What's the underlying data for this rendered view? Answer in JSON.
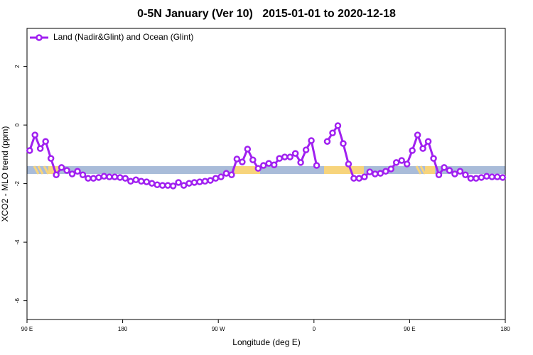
{
  "chart_data": {
    "type": "line",
    "title": "0-5N January (Ver 10)   2015-01-01 to 2020-12-18",
    "xlabel": "Longitude (deg E)",
    "ylabel": "XCO2 - MLO trend (ppm)",
    "xlim": [
      90,
      540
    ],
    "xticks": [
      {
        "value": 90,
        "label": "90 E"
      },
      180,
      {
        "value": 270,
        "label": "90 W"
      },
      {
        "value": 360,
        "label": "0"
      },
      {
        "value": 450,
        "label": "90 E"
      },
      {
        "value": 540,
        "label": "180"
      }
    ],
    "ylim": [
      -6.64,
      3.3
    ],
    "yticks": [
      2,
      0,
      -2,
      -4,
      -6
    ],
    "legend": "top-left",
    "x": [
      92.5,
      97.5,
      102.5,
      107.5,
      112.5,
      117.5,
      122.5,
      127.5,
      132.5,
      137.5,
      142.5,
      147.5,
      152.5,
      157.5,
      162.5,
      167.5,
      172.5,
      177.5,
      182.5,
      187.5,
      192.5,
      197.5,
      202.5,
      207.5,
      212.5,
      217.5,
      222.5,
      227.5,
      232.5,
      237.5,
      242.5,
      247.5,
      252.5,
      257.5,
      262.5,
      267.5,
      272.5,
      277.5,
      282.5,
      287.5,
      292.5,
      297.5,
      302.5,
      307.5,
      312.5,
      317.5,
      322.5,
      327.5,
      332.5,
      337.5,
      342.5,
      347.5,
      352.5,
      357.5,
      362.5,
      367.5,
      372.5,
      377.5,
      382.5,
      387.5,
      392.5,
      397.5,
      402.5,
      407.5,
      412.5,
      417.5,
      422.5,
      427.5,
      432.5,
      437.5,
      442.5,
      447.5,
      452.5,
      457.5,
      462.5,
      467.5,
      472.5,
      477.5,
      482.5,
      487.5,
      492.5,
      497.5,
      502.5,
      507.5,
      512.5,
      517.5,
      522.5,
      527.5,
      532.5,
      537.5
    ],
    "series": [
      {
        "name": "Land (Nadir&Glint) and Ocean (Glint)",
        "color": "#a020f0",
        "values": [
          -0.87,
          -0.34,
          -0.8,
          -0.56,
          -1.14,
          -1.7,
          -1.45,
          -1.55,
          -1.67,
          -1.58,
          -1.7,
          -1.82,
          -1.82,
          -1.79,
          -1.75,
          -1.77,
          -1.77,
          -1.79,
          -1.82,
          -1.92,
          -1.87,
          -1.92,
          -1.94,
          -1.99,
          -2.04,
          -2.06,
          -2.06,
          -2.08,
          -1.96,
          -2.06,
          -1.99,
          -1.96,
          -1.94,
          -1.92,
          -1.89,
          -1.82,
          -1.77,
          -1.65,
          -1.7,
          -1.16,
          -1.26,
          -0.82,
          -1.19,
          -1.48,
          -1.38,
          -1.31,
          -1.36,
          -1.14,
          -1.09,
          -1.09,
          -0.97,
          -1.28,
          -0.85,
          -0.53,
          -1.38,
          null,
          -0.56,
          -0.27,
          -0.02,
          -0.63,
          -1.33,
          -1.82,
          -1.82,
          -1.77,
          -1.6,
          -1.67,
          -1.65,
          -1.58,
          -1.5,
          -1.28,
          -1.21,
          -1.33,
          -0.87,
          -0.34,
          -0.8,
          -0.56,
          -1.14,
          -1.7,
          -1.45,
          -1.55,
          -1.67,
          -1.58,
          -1.7,
          -1.82,
          -1.82,
          -1.79,
          -1.75,
          -1.77,
          -1.77,
          -1.79
        ]
      }
    ]
  }
}
